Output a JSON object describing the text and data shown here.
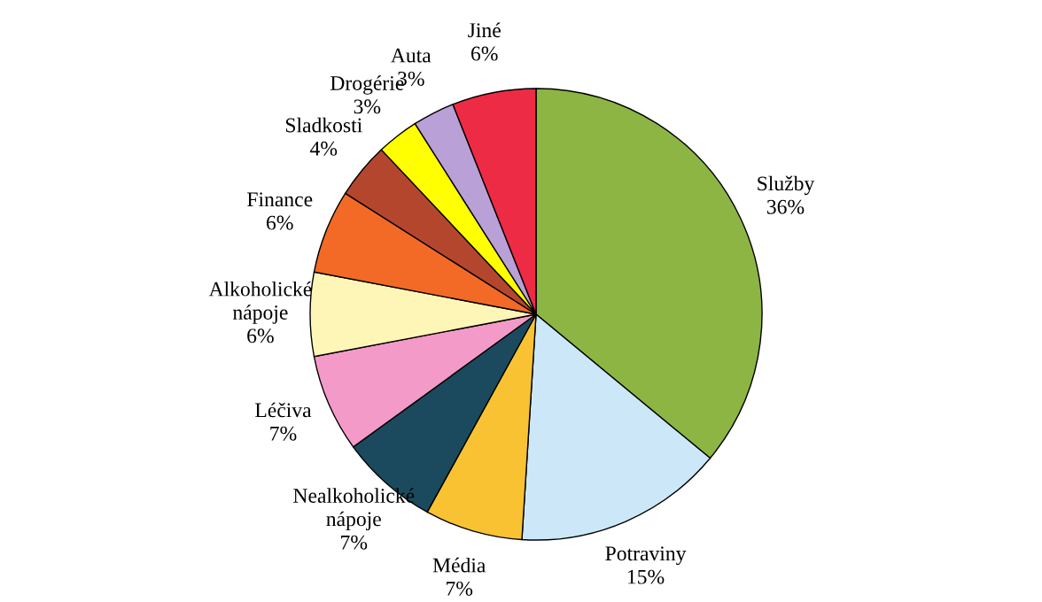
{
  "chart_data": {
    "type": "pie",
    "categories": [
      "Služby",
      "Potraviny",
      "Média",
      "Nealkoholické nápoje",
      "Léčiva",
      "Alkoholické nápoje",
      "Finance",
      "Sladkosti",
      "Drogérie",
      "Auta",
      "Jiné"
    ],
    "values": [
      36,
      15,
      7,
      7,
      7,
      6,
      6,
      4,
      3,
      3,
      6
    ],
    "value_labels": [
      "36%",
      "15%",
      "7%",
      "7%",
      "7%",
      "6%",
      "6%",
      "4%",
      "3%",
      "3%",
      "6%"
    ],
    "colors": [
      "#8db543",
      "#cce8f8",
      "#f9c232",
      "#1b4a5e",
      "#f49ac8",
      "#fdf6b6",
      "#f26a26",
      "#b5462e",
      "#ffff00",
      "#b9a0d6",
      "#ee2b45"
    ],
    "legend": false
  }
}
